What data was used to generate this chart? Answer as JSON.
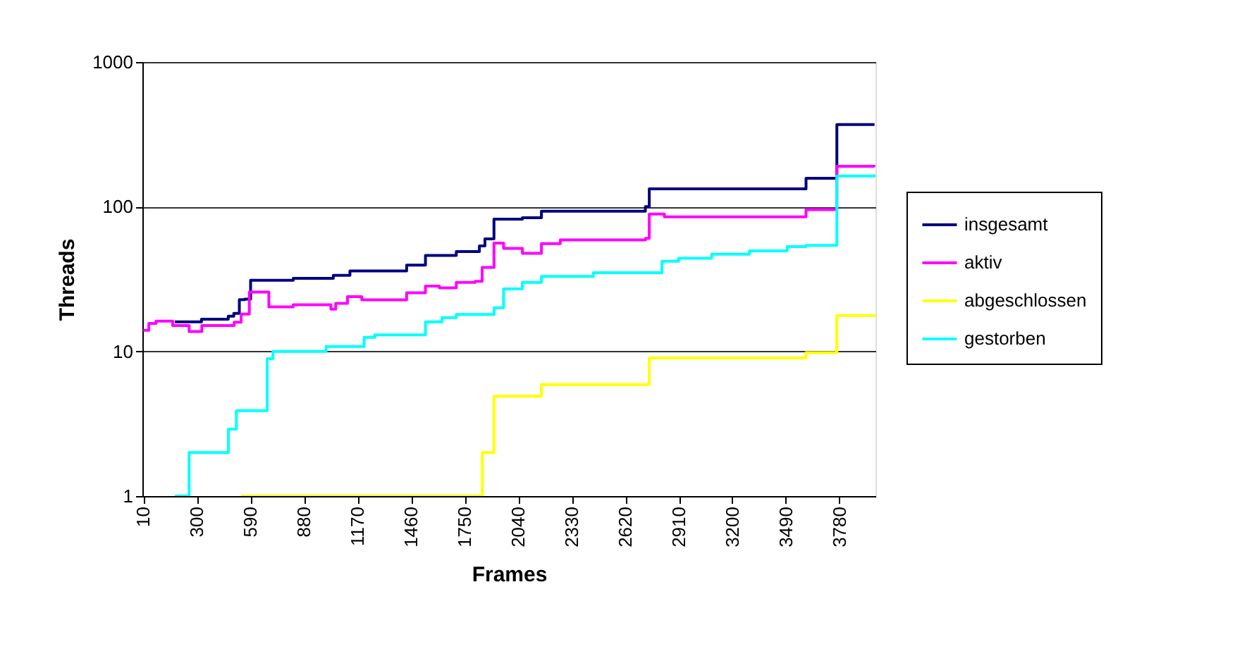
{
  "chart_data": {
    "type": "step",
    "xlabel": "Frames",
    "ylabel": "Threads",
    "log": "y",
    "grid": "y",
    "legend": "right",
    "marker": "none",
    "line_style": "solid",
    "xlim": [
      5,
      3975
    ],
    "xticks": [
      10,
      300,
      590,
      880,
      1170,
      1460,
      1750,
      2040,
      2330,
      2620,
      2910,
      3200,
      3490,
      3780
    ],
    "ylim": [
      1,
      1000
    ],
    "yticks": [
      1,
      10,
      100,
      1000
    ],
    "series": [
      {
        "name": "insgesamt",
        "color": "#000080",
        "x": [
          180,
          325,
          470,
          500,
          530,
          560,
          591,
          822,
          1039,
          1129,
          1436,
          1538,
          1705,
          1830,
          1860,
          1909,
          2063,
          2166,
          2729,
          2750,
          3599,
          3766,
          3970
        ],
        "values": [
          16,
          16.7,
          17.5,
          18.3,
          22.8,
          23,
          31,
          32,
          33.5,
          36,
          39.5,
          46,
          49,
          53.5,
          60,
          82,
          84,
          93,
          100,
          133,
          157,
          370,
          370
        ]
      },
      {
        "name": "aktiv",
        "color": "#ff00ff",
        "x": [
          10,
          40,
          79,
          169,
          258,
          327,
          502,
          540,
          584,
          676,
          690,
          822,
          1000,
          1026,
          1052,
          1116,
          1193,
          1436,
          1538,
          1613,
          1705,
          1807,
          1845,
          1909,
          1961,
          2063,
          2166,
          2268,
          2729,
          2750,
          2832,
          3318,
          3599,
          3766,
          3970
        ],
        "values": [
          14,
          15.6,
          16.2,
          15.1,
          13.7,
          15.1,
          15.9,
          18.1,
          25.7,
          25.7,
          20.3,
          21,
          21,
          19.6,
          21.5,
          23.9,
          22.7,
          25.4,
          28.3,
          27.5,
          30,
          30.5,
          38,
          56,
          51.5,
          47.6,
          55.5,
          59,
          60.5,
          89,
          85,
          85,
          95.5,
          190,
          188
        ]
      },
      {
        "name": "abgeschlossen",
        "color": "#ffff00",
        "x": [
          540,
          1833,
          1846,
          1909,
          2166,
          2729,
          2750,
          3599,
          3766,
          3970
        ],
        "values": [
          1,
          1,
          2,
          4.9,
          5.9,
          5.9,
          9,
          9.8,
          17.7,
          18
        ]
      },
      {
        "name": "gestorben",
        "color": "#00ffff",
        "x": [
          181,
          258,
          471,
          514,
          681,
          712,
          1000,
          1206,
          1264,
          1538,
          1628,
          1705,
          1884,
          1910,
          1961,
          2063,
          2166,
          2447,
          2819,
          2909,
          3088,
          3293,
          3497,
          3599,
          3766,
          3970
        ],
        "values": [
          1,
          2,
          2.9,
          3.9,
          8.9,
          10,
          10.8,
          12.5,
          13,
          16,
          17.1,
          18,
          18,
          20,
          27,
          30,
          33,
          35,
          42,
          44,
          47,
          49.5,
          53,
          54,
          163,
          167
        ]
      }
    ]
  }
}
